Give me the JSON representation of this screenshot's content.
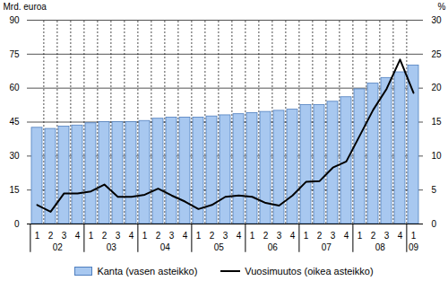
{
  "chart_data": {
    "type": "bar",
    "y_label": "Mrd. euroa",
    "y2_label": "%",
    "categories": [
      "1",
      "2",
      "3",
      "4",
      "1",
      "2",
      "3",
      "4",
      "1",
      "2",
      "3",
      "4",
      "1",
      "2",
      "3",
      "4",
      "1",
      "2",
      "3",
      "4",
      "1",
      "2",
      "3",
      "4",
      "1",
      "2",
      "3",
      "4",
      "1"
    ],
    "year_labels": [
      "02",
      "03",
      "04",
      "05",
      "06",
      "07",
      "08",
      "09"
    ],
    "series": [
      {
        "name": "Kanta (vasen asteikko)",
        "type": "bar",
        "color": "#a8c8f0",
        "values": [
          42.5,
          42,
          43,
          43.5,
          44.5,
          45,
          45,
          45,
          45.5,
          46.5,
          47,
          47,
          47,
          47.5,
          48,
          48.5,
          49,
          49.5,
          50,
          50.5,
          52.5,
          52.5,
          54,
          56,
          59.5,
          62,
          64.5,
          67,
          70
        ]
      },
      {
        "name": "Vuosimuutos (oikea asteikko)",
        "type": "line",
        "color": "#000000",
        "axis": "y2",
        "values": [
          2.8,
          1.8,
          4.5,
          4.5,
          4.8,
          5.8,
          4,
          4,
          4.3,
          5.2,
          4.2,
          3.3,
          2.2,
          2.8,
          4,
          4.2,
          4,
          3.1,
          2.7,
          4.2,
          6.2,
          6.3,
          8.3,
          9.2,
          13,
          16.8,
          19.9,
          24.2,
          19.3
        ]
      }
    ],
    "ylim": [
      0,
      90
    ],
    "yticks": [
      0,
      15,
      30,
      45,
      60,
      75,
      90
    ],
    "y2lim": [
      0,
      30
    ],
    "y2ticks": [
      0,
      5,
      10,
      15,
      20,
      25,
      30
    ],
    "grid": true,
    "legend": "bottom"
  }
}
